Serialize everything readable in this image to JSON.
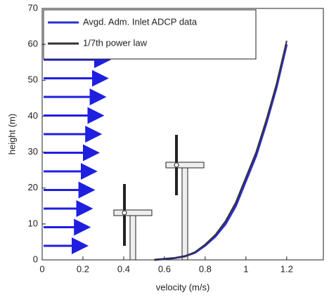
{
  "chart_data": {
    "type": "line",
    "x_label": "velocity (m/s)",
    "y_label": "height (m)",
    "x": [
      0.55,
      0.65,
      0.7,
      0.75,
      0.8,
      0.85,
      0.9,
      0.95,
      1.0,
      1.05,
      1.1,
      1.15,
      1.2
    ],
    "series": [
      {
        "name": "Avgd. Adm. Inlet ADCP data",
        "color": "#2c2cd0",
        "values": [
          0,
          0.5,
          1,
          2,
          4,
          6.5,
          10,
          15,
          22,
          29,
          38,
          48,
          60
        ]
      },
      {
        "name": "1/7th power law",
        "color": "#333333",
        "values": [
          0,
          0.5,
          1,
          2.2,
          4.3,
          7,
          10.8,
          16,
          23,
          30,
          39,
          49,
          61
        ]
      }
    ],
    "xlim": [
      0,
      1.38
    ],
    "xticks": [
      0,
      0.2,
      0.4,
      0.6,
      0.8,
      1,
      1.2
    ],
    "ylim": [
      0,
      70
    ],
    "yticks": [
      0,
      10,
      20,
      30,
      40,
      50,
      60,
      70
    ],
    "legend": "upper left"
  }
}
